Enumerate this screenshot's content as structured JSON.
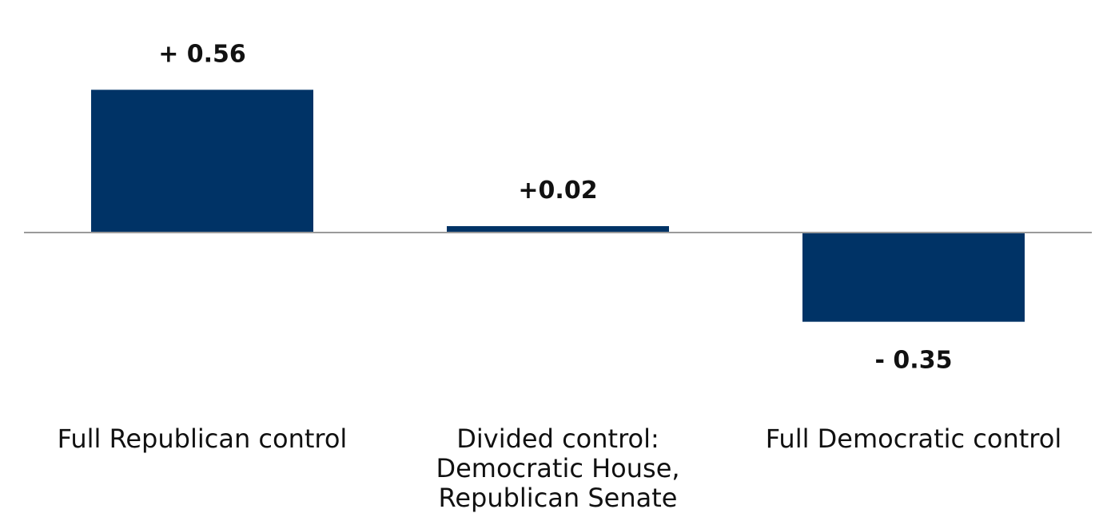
{
  "chart_data": {
    "type": "bar",
    "categories": [
      [
        "Full Republican control"
      ],
      [
        "Divided control:",
        "Democratic House,",
        "Republican Senate"
      ],
      [
        "Full Democratic control"
      ]
    ],
    "values": [
      0.56,
      0.02,
      -0.35
    ],
    "data_labels": [
      "+ 0.56",
      "+0.02",
      "- 0.35"
    ],
    "colors": {
      "bar": "#003366",
      "zero_line": "#9a9a9a"
    },
    "title": "",
    "xlabel": "",
    "ylabel": "",
    "grid": false,
    "legend": "none"
  }
}
